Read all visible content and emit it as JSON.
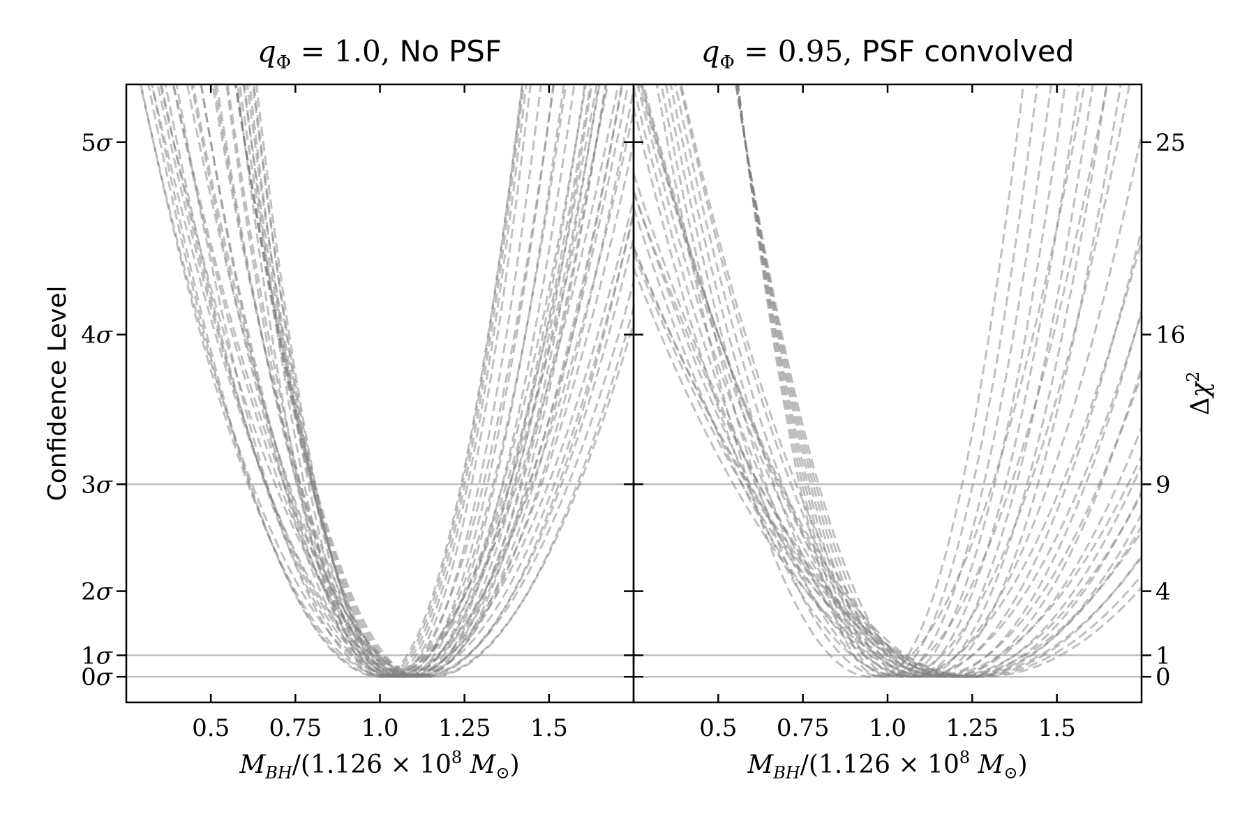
{
  "chart_data": [
    {
      "type": "line",
      "panel": "left",
      "title": "q_Φ = 1.0, No PSF",
      "title_parts": {
        "sym": "q",
        "sub": "Φ",
        "eq": " = 1.0, ",
        "text": "No PSF"
      },
      "xlabel": "M_BH/(1.126 × 10^8 M_⊙)",
      "ylabel": "Confidence Level",
      "xlim": [
        0.25,
        1.75
      ],
      "ylim": [
        -1.2,
        27.7
      ],
      "x_ticks": [
        0.5,
        0.75,
        1.0,
        1.25,
        1.5
      ],
      "x_tick_labels": [
        "0.5",
        "0.75",
        "1.0",
        "1.25",
        "1.5"
      ],
      "y_ticks_dchi2": [
        0,
        1,
        4,
        9,
        16,
        25
      ],
      "y_tick_labels": [
        "0σ",
        "1σ",
        "2σ",
        "3σ",
        "4σ",
        "5σ"
      ],
      "reference_lines_dchi2": [
        0,
        1,
        9
      ],
      "line_style": "dashed gray, semi-transparent",
      "series_model": "Δχ² = ((x − x0)/s)², one curve per [x0, s]",
      "series": [
        [
          1.0,
          0.08
        ],
        [
          1.01,
          0.078
        ],
        [
          1.02,
          0.077
        ],
        [
          1.03,
          0.0765
        ],
        [
          1.04,
          0.077
        ],
        [
          1.05,
          0.081
        ],
        [
          1.06,
          0.086
        ],
        [
          1.07,
          0.09
        ],
        [
          1.08,
          0.094
        ],
        [
          1.09,
          0.098
        ],
        [
          1.1,
          0.1
        ],
        [
          1.11,
          0.102
        ],
        [
          1.12,
          0.104
        ],
        [
          1.03,
          0.092
        ],
        [
          1.05,
          0.095
        ],
        [
          1.07,
          0.105
        ],
        [
          1.09,
          0.11
        ],
        [
          1.11,
          0.115
        ],
        [
          1.04,
          0.108
        ],
        [
          1.06,
          0.112
        ],
        [
          1.02,
          0.118
        ],
        [
          1.08,
          0.121
        ],
        [
          1.1,
          0.124
        ],
        [
          1.0,
          0.128
        ],
        [
          1.05,
          0.13
        ],
        [
          1.13,
          0.133
        ],
        [
          1.01,
          0.132
        ],
        [
          1.07,
          0.136
        ],
        [
          1.12,
          0.139
        ],
        [
          1.03,
          0.14
        ],
        [
          1.09,
          0.142
        ],
        [
          1.15,
          0.1445
        ],
        [
          1.06,
          0.146
        ],
        [
          1.11,
          0.149
        ],
        [
          1.14,
          0.15
        ]
      ]
    },
    {
      "type": "line",
      "panel": "right",
      "title": "q_Φ = 0.95, PSF convolved",
      "title_parts": {
        "sym": "q",
        "sub": "Φ",
        "eq": " = 0.95, ",
        "text": "PSF convolved"
      },
      "xlabel": "M_BH/(1.126 × 10^8 M_⊙)",
      "ylabel": "Δχ²",
      "xlim": [
        0.25,
        1.75
      ],
      "ylim": [
        -1.2,
        27.7
      ],
      "x_ticks": [
        0.5,
        0.75,
        1.0,
        1.25,
        1.5
      ],
      "x_tick_labels": [
        "0.5",
        "0.75",
        "1.0",
        "1.25",
        "1.5"
      ],
      "y_ticks_dchi2": [
        0,
        1,
        4,
        9,
        16,
        25
      ],
      "y_tick_labels": [
        "0",
        "1",
        "4",
        "9",
        "16",
        "25"
      ],
      "reference_lines_dchi2": [
        0,
        1,
        9
      ],
      "line_style": "dashed gray, semi-transparent",
      "series_model": "Δχ² = ((x − x0)/s)², one curve per [x0, s]",
      "series": [
        [
          0.98,
          0.08
        ],
        [
          1.0,
          0.084
        ],
        [
          1.02,
          0.088
        ],
        [
          1.04,
          0.092
        ],
        [
          1.06,
          0.096
        ],
        [
          1.08,
          0.1
        ],
        [
          1.1,
          0.104
        ],
        [
          1.12,
          0.108
        ],
        [
          0.95,
          0.12
        ],
        [
          0.99,
          0.125
        ],
        [
          1.03,
          0.13
        ],
        [
          1.07,
          0.135
        ],
        [
          1.11,
          0.14
        ],
        [
          1.15,
          0.145
        ],
        [
          1.18,
          0.15
        ],
        [
          1.05,
          0.155
        ],
        [
          1.09,
          0.16
        ],
        [
          1.13,
          0.165
        ],
        [
          1.17,
          0.17
        ],
        [
          1.2,
          0.175
        ],
        [
          1.22,
          0.18
        ],
        [
          1.24,
          0.185
        ],
        [
          1.14,
          0.19
        ],
        [
          1.18,
          0.195
        ],
        [
          1.22,
          0.2
        ],
        [
          1.25,
          0.21
        ],
        [
          1.19,
          0.215
        ],
        [
          1.23,
          0.22
        ],
        [
          1.26,
          0.225
        ],
        [
          1.28,
          0.23
        ]
      ]
    }
  ]
}
